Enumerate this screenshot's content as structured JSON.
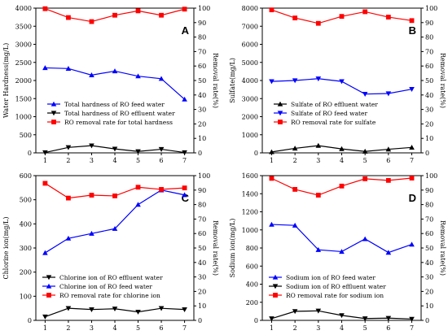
{
  "chart_data": [
    {
      "panel": "A",
      "type": "line",
      "x": [
        1,
        2,
        3,
        4,
        5,
        6,
        7
      ],
      "ylabel": "Water Hardness(mg/L)",
      "y2label": "Removal rate(%)",
      "ylim": [
        0,
        4000
      ],
      "yticks": [
        0,
        500,
        1000,
        1500,
        2000,
        2500,
        3000,
        3500,
        4000
      ],
      "y2lim": [
        0,
        100
      ],
      "y2ticks": [
        0,
        10,
        20,
        30,
        40,
        50,
        60,
        70,
        80,
        90,
        100
      ],
      "legend_position": "center-left",
      "series": [
        {
          "name": "Total hardness of RO feed water",
          "axis": "left",
          "color": "#0000ff",
          "marker": "triangle-up",
          "values": [
            2350,
            2330,
            2150,
            2260,
            2120,
            2050,
            1480
          ]
        },
        {
          "name": "Total hardness of RO effluent water",
          "axis": "left",
          "color": "#000000",
          "marker": "triangle-down",
          "values": [
            10,
            150,
            200,
            110,
            40,
            100,
            10
          ]
        },
        {
          "name": "RO removal rate for total hardness",
          "axis": "right",
          "color": "#ff0000",
          "marker": "square",
          "values": [
            99.6,
            93.5,
            90.7,
            95.1,
            98.1,
            95.1,
            99.3
          ]
        }
      ]
    },
    {
      "panel": "B",
      "type": "line",
      "x": [
        1,
        2,
        3,
        4,
        5,
        6,
        7
      ],
      "ylabel": "Sulfate(mg/L)",
      "y2label": "Removal rate(%)",
      "ylim": [
        0,
        8000
      ],
      "yticks": [
        0,
        1000,
        2000,
        3000,
        4000,
        5000,
        6000,
        7000,
        8000
      ],
      "y2lim": [
        0,
        100
      ],
      "y2ticks": [
        0,
        10,
        20,
        30,
        40,
        50,
        60,
        70,
        80,
        90,
        100
      ],
      "legend_position": "center-left",
      "series": [
        {
          "name": "Sulfate of RO effluent water",
          "axis": "left",
          "color": "#000000",
          "marker": "triangle-up",
          "values": [
            50,
            250,
            400,
            220,
            80,
            200,
            300
          ]
        },
        {
          "name": "Sulfate of RO feed water",
          "axis": "left",
          "color": "#0000ff",
          "marker": "triangle-down",
          "values": [
            3950,
            4000,
            4100,
            3950,
            3250,
            3280,
            3520
          ]
        },
        {
          "name": "RO removal rate for sulfate",
          "axis": "right",
          "color": "#ff0000",
          "marker": "square",
          "values": [
            98.8,
            93.2,
            89.5,
            94.3,
            97.5,
            93.8,
            91.4
          ]
        }
      ]
    },
    {
      "panel": "C",
      "type": "line",
      "x": [
        1,
        2,
        3,
        4,
        5,
        6,
        7
      ],
      "ylabel": "Chlorine ion(mg/L)",
      "y2label": "Removal rate(%)",
      "ylim": [
        0,
        600
      ],
      "yticks": [
        0,
        100,
        200,
        300,
        400,
        500,
        600
      ],
      "y2lim": [
        0,
        100
      ],
      "y2ticks": [
        0,
        10,
        20,
        30,
        40,
        50,
        60,
        70,
        80,
        90,
        100
      ],
      "legend_position": "lower-left",
      "series": [
        {
          "name": "Chlorine ion of RO effluent water",
          "axis": "left",
          "color": "#000000",
          "marker": "triangle-down",
          "values": [
            15,
            50,
            45,
            48,
            35,
            50,
            45
          ]
        },
        {
          "name": "Chlorine ion of RO feed water",
          "axis": "left",
          "color": "#0000ff",
          "marker": "triangle-up",
          "values": [
            280,
            340,
            360,
            380,
            480,
            540,
            520
          ]
        },
        {
          "name": "RO removal rate for chlorine ion",
          "axis": "right",
          "color": "#ff0000",
          "marker": "square",
          "values": [
            94.7,
            84.5,
            86.5,
            86.0,
            92.0,
            90.5,
            91.5
          ]
        }
      ]
    },
    {
      "panel": "D",
      "type": "line",
      "x": [
        1,
        2,
        3,
        4,
        5,
        6,
        7
      ],
      "ylabel": "Sodium ion(mg/L)",
      "y2label": "Removal rate(%)",
      "ylim": [
        0,
        1600
      ],
      "yticks": [
        0,
        200,
        400,
        600,
        800,
        1000,
        1200,
        1400,
        1600
      ],
      "y2lim": [
        0,
        100
      ],
      "y2ticks": [
        0,
        10,
        20,
        30,
        40,
        50,
        60,
        70,
        80,
        90,
        100
      ],
      "legend_position": "lower-left",
      "series": [
        {
          "name": "Sodium ion of RO feed water",
          "axis": "left",
          "color": "#0000ff",
          "marker": "triangle-up",
          "values": [
            1060,
            1050,
            780,
            760,
            900,
            750,
            840
          ]
        },
        {
          "name": "Sodium ion of RO effluent water",
          "axis": "left",
          "color": "#000000",
          "marker": "triangle-down",
          "values": [
            20,
            100,
            105,
            55,
            20,
            25,
            15
          ]
        },
        {
          "name": "RO removal rate for sodium ion",
          "axis": "right",
          "color": "#ff0000",
          "marker": "square",
          "values": [
            98.1,
            90.5,
            86.5,
            92.8,
            97.8,
            96.7,
            98.3
          ]
        }
      ]
    }
  ]
}
